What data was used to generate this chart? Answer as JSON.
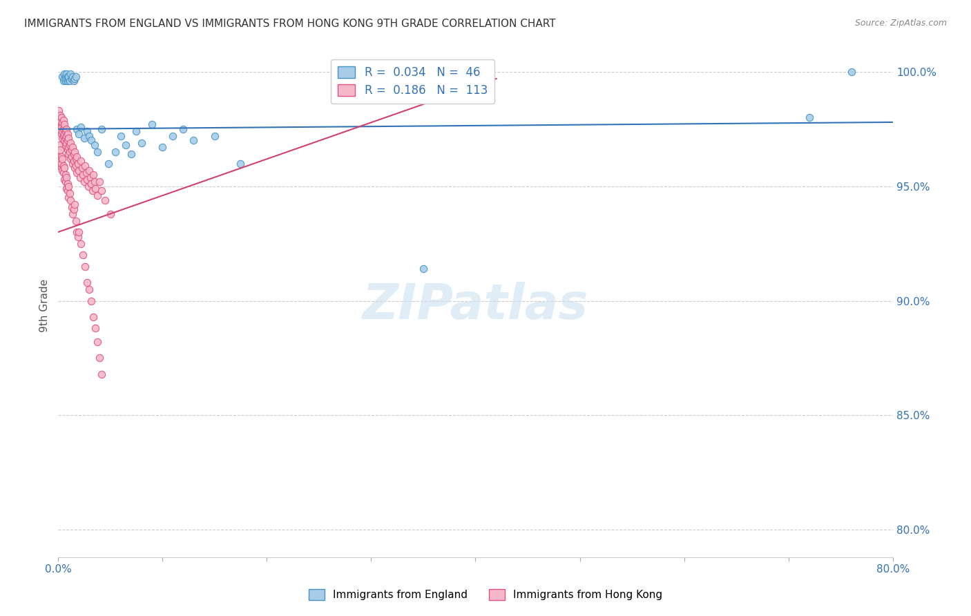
{
  "title": "IMMIGRANTS FROM ENGLAND VS IMMIGRANTS FROM HONG KONG 9TH GRADE CORRELATION CHART",
  "source": "Source: ZipAtlas.com",
  "ylabel": "9th Grade",
  "xlim": [
    0.0,
    0.8
  ],
  "ylim": [
    0.788,
    1.008
  ],
  "x_tick_positions": [
    0.0,
    0.1,
    0.2,
    0.3,
    0.4,
    0.5,
    0.6,
    0.7,
    0.8
  ],
  "x_tick_labels": [
    "0.0%",
    "",
    "",
    "",
    "",
    "",
    "",
    "",
    "80.0%"
  ],
  "y_tick_positions": [
    0.8,
    0.85,
    0.9,
    0.95,
    1.0
  ],
  "y_tick_labels": [
    "80.0%",
    "85.0%",
    "90.0%",
    "95.0%",
    "100.0%"
  ],
  "england_R": 0.034,
  "england_N": 46,
  "hongkong_R": 0.186,
  "hongkong_N": 113,
  "england_color": "#a8cce8",
  "hongkong_color": "#f5b8c8",
  "england_edge_color": "#4393c3",
  "hongkong_edge_color": "#e05080",
  "england_line_color": "#3373b5",
  "hongkong_line_color": "#d04070",
  "watermark": "ZIPatlas",
  "england_line_x": [
    0.0,
    0.8
  ],
  "england_line_y": [
    0.975,
    0.978
  ],
  "hongkong_line_x": [
    0.0,
    0.42
  ],
  "hongkong_line_y": [
    0.93,
    0.997
  ],
  "england_scatter_x": [
    0.004,
    0.005,
    0.006,
    0.006,
    0.007,
    0.007,
    0.008,
    0.008,
    0.009,
    0.009,
    0.01,
    0.01,
    0.011,
    0.012,
    0.013,
    0.014,
    0.015,
    0.016,
    0.017,
    0.018,
    0.02,
    0.022,
    0.025,
    0.028,
    0.03,
    0.032,
    0.035,
    0.038,
    0.042,
    0.048,
    0.055,
    0.06,
    0.065,
    0.07,
    0.075,
    0.08,
    0.09,
    0.1,
    0.11,
    0.12,
    0.13,
    0.15,
    0.175,
    0.35,
    0.72,
    0.76
  ],
  "england_scatter_y": [
    0.998,
    0.996,
    0.999,
    0.997,
    0.998,
    0.996,
    0.997,
    0.999,
    0.998,
    0.996,
    0.997,
    0.998,
    0.996,
    0.999,
    0.997,
    0.998,
    0.996,
    0.997,
    0.998,
    0.975,
    0.973,
    0.976,
    0.971,
    0.974,
    0.972,
    0.97,
    0.968,
    0.965,
    0.975,
    0.96,
    0.965,
    0.972,
    0.968,
    0.964,
    0.974,
    0.969,
    0.977,
    0.967,
    0.972,
    0.975,
    0.97,
    0.972,
    0.96,
    0.914,
    0.98,
    1.0
  ],
  "hongkong_scatter_x": [
    0.001,
    0.001,
    0.002,
    0.002,
    0.002,
    0.003,
    0.003,
    0.003,
    0.003,
    0.004,
    0.004,
    0.004,
    0.005,
    0.005,
    0.005,
    0.006,
    0.006,
    0.006,
    0.006,
    0.007,
    0.007,
    0.007,
    0.008,
    0.008,
    0.008,
    0.009,
    0.009,
    0.009,
    0.01,
    0.01,
    0.01,
    0.011,
    0.011,
    0.012,
    0.012,
    0.013,
    0.013,
    0.014,
    0.014,
    0.015,
    0.015,
    0.016,
    0.016,
    0.017,
    0.017,
    0.018,
    0.018,
    0.019,
    0.02,
    0.021,
    0.022,
    0.023,
    0.024,
    0.025,
    0.026,
    0.027,
    0.028,
    0.029,
    0.03,
    0.031,
    0.032,
    0.033,
    0.034,
    0.035,
    0.036,
    0.038,
    0.04,
    0.042,
    0.045,
    0.05,
    0.001,
    0.001,
    0.002,
    0.002,
    0.002,
    0.003,
    0.003,
    0.003,
    0.004,
    0.004,
    0.005,
    0.005,
    0.006,
    0.006,
    0.007,
    0.007,
    0.008,
    0.008,
    0.009,
    0.009,
    0.01,
    0.01,
    0.011,
    0.012,
    0.013,
    0.014,
    0.015,
    0.016,
    0.017,
    0.018,
    0.019,
    0.02,
    0.022,
    0.024,
    0.026,
    0.028,
    0.03,
    0.032,
    0.034,
    0.036,
    0.038,
    0.04,
    0.042
  ],
  "hongkong_scatter_y": [
    0.98,
    0.983,
    0.978,
    0.975,
    0.981,
    0.977,
    0.973,
    0.98,
    0.976,
    0.974,
    0.971,
    0.978,
    0.975,
    0.972,
    0.979,
    0.976,
    0.973,
    0.97,
    0.977,
    0.974,
    0.971,
    0.968,
    0.975,
    0.972,
    0.969,
    0.966,
    0.973,
    0.97,
    0.967,
    0.964,
    0.971,
    0.968,
    0.965,
    0.962,
    0.969,
    0.966,
    0.963,
    0.96,
    0.967,
    0.964,
    0.961,
    0.958,
    0.965,
    0.962,
    0.959,
    0.956,
    0.963,
    0.96,
    0.957,
    0.954,
    0.961,
    0.958,
    0.955,
    0.952,
    0.959,
    0.956,
    0.953,
    0.95,
    0.957,
    0.954,
    0.951,
    0.948,
    0.955,
    0.952,
    0.949,
    0.946,
    0.952,
    0.948,
    0.944,
    0.938,
    0.965,
    0.968,
    0.963,
    0.966,
    0.96,
    0.958,
    0.963,
    0.96,
    0.957,
    0.962,
    0.959,
    0.956,
    0.953,
    0.958,
    0.955,
    0.952,
    0.949,
    0.954,
    0.951,
    0.948,
    0.945,
    0.95,
    0.947,
    0.944,
    0.941,
    0.938,
    0.94,
    0.942,
    0.935,
    0.93,
    0.928,
    0.93,
    0.925,
    0.92,
    0.915,
    0.908,
    0.905,
    0.9,
    0.893,
    0.888,
    0.882,
    0.875,
    0.868
  ]
}
